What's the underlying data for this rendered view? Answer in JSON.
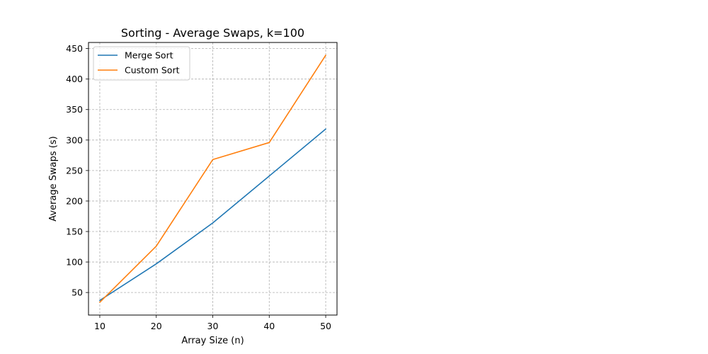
{
  "chart_data": {
    "type": "line",
    "title": "Sorting - Average Swaps, k=100",
    "xlabel": "Array Size (n)",
    "ylabel": "Average Swaps (s)",
    "x": [
      10,
      20,
      30,
      40,
      50
    ],
    "xticks": [
      "10",
      "20",
      "30",
      "40",
      "50"
    ],
    "yticks": [
      "50",
      "100",
      "150",
      "200",
      "250",
      "300",
      "350",
      "400",
      "450"
    ],
    "xlim": [
      8,
      52
    ],
    "ylim": [
      13,
      460
    ],
    "grid": true,
    "grid_style": "dashed",
    "legend_position": "top-left",
    "series": [
      {
        "name": "Merge Sort",
        "color": "#1f77b4",
        "values": [
          37,
          97,
          164,
          241,
          318
        ]
      },
      {
        "name": "Custom Sort",
        "color": "#ff7f0e",
        "values": [
          34,
          126,
          268,
          296,
          439
        ]
      }
    ]
  }
}
